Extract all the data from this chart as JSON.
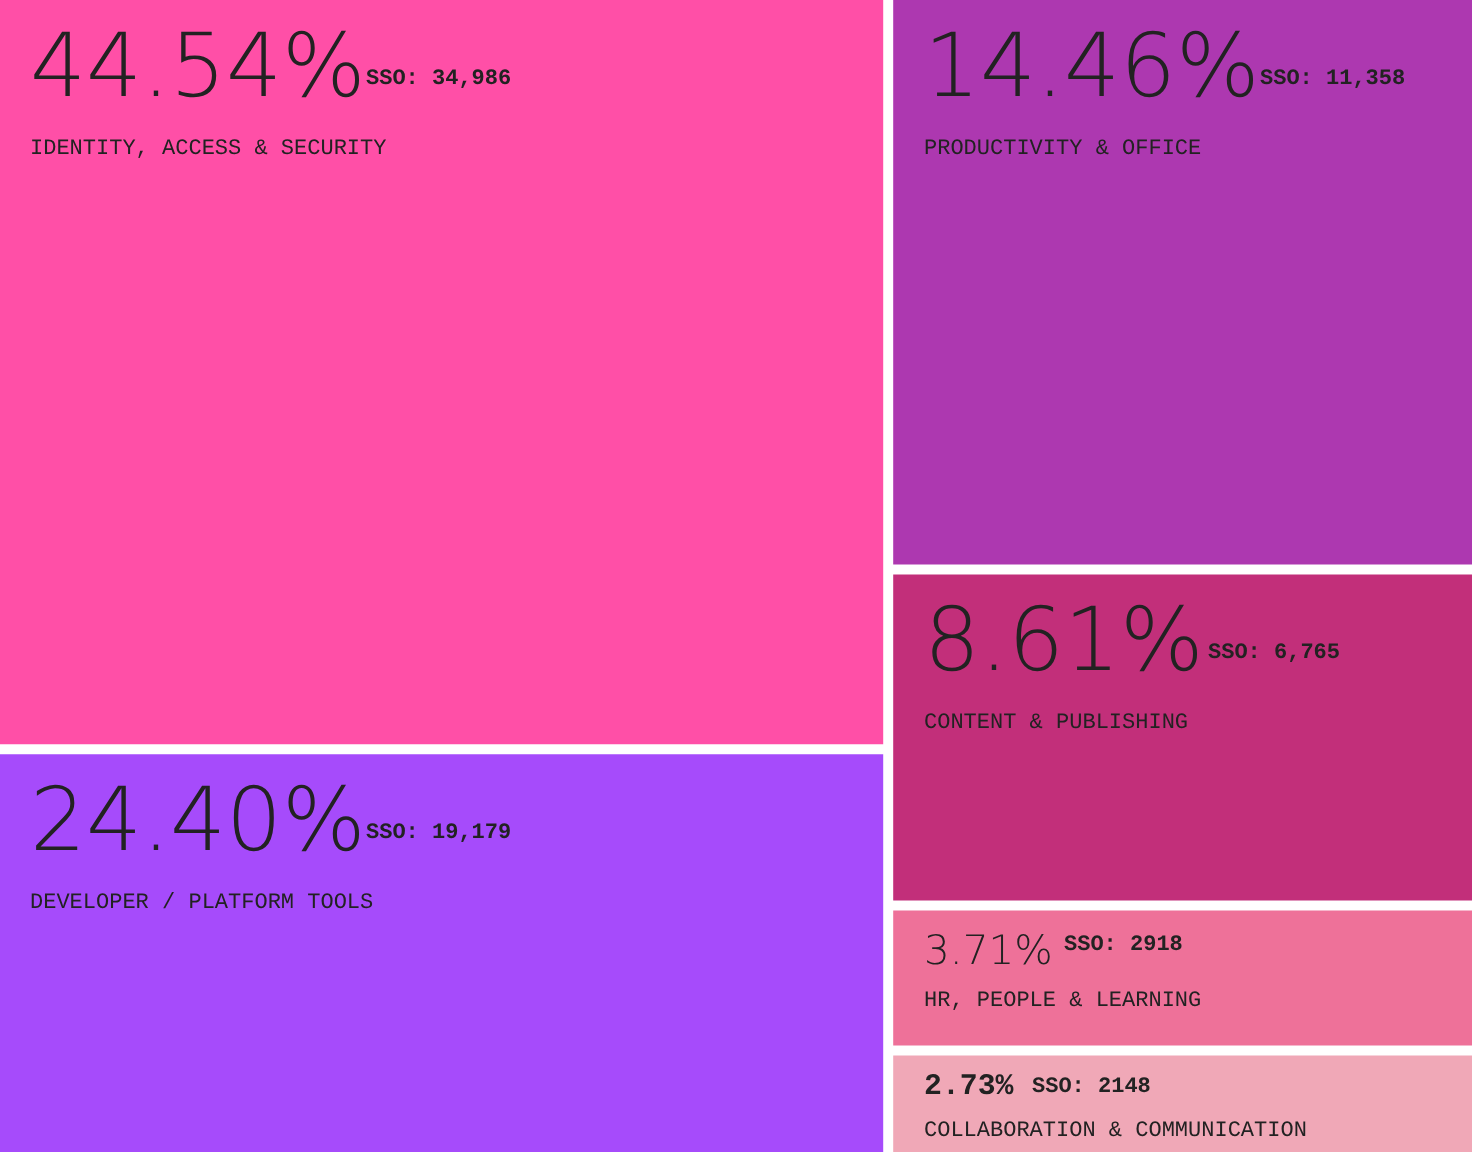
{
  "chart_data": {
    "type": "other",
    "categories": [
      "IDENTITY, ACCESS & SECURITY",
      "DEVELOPER / PLATFORM TOOLS",
      "PRODUCTIVITY & OFFICE",
      "CONTENT & PUBLISHING",
      "HR, PEOPLE & LEARNING",
      "COLLABORATION & COMMUNICATION"
    ],
    "colors": [
      "#ff4fa7",
      "#a64bfb",
      "#ad38b0",
      "#c22f7a",
      "#ee7199",
      "#f0a8b7"
    ],
    "values": [
      44.54,
      24.4,
      14.46,
      8.61,
      3.71,
      2.73
    ],
    "value_labels": [
      "44.54%",
      "24.40%",
      "14.46%",
      "8.61%",
      "3.71%",
      "2.73%"
    ],
    "annotations": [
      "SSO: 34,986",
      "SSO: 19,179",
      "SSO: 11,358",
      "SSO: 6,765",
      "SSO: 2918",
      "SSO: 2148"
    ]
  }
}
